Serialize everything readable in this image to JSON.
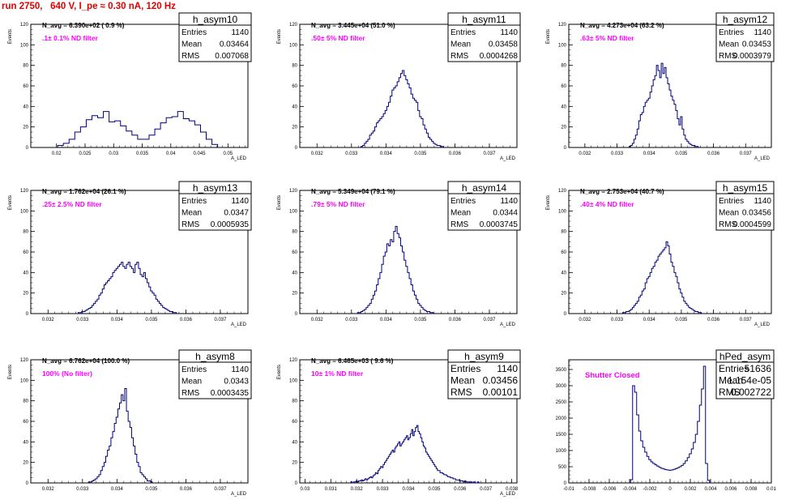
{
  "page": {
    "title": "run 2750,   640 V, I_pe ≈ 0.30 nA, 120 Hz"
  },
  "chart_data": [
    {
      "type": "bar",
      "name": "h_asym10",
      "ylabel": "Events",
      "xlabel": "A_LED",
      "ylim": [
        0,
        120
      ],
      "xlim": [
        0.0155,
        0.0535
      ],
      "xticks": [
        "0.02",
        "0.025",
        "0.03",
        "0.035",
        "0.04",
        "0.045",
        "0.05"
      ],
      "yticks": [
        "0",
        "20",
        "40",
        "60",
        "80",
        "100",
        "120"
      ],
      "n_avg": "N_avg = 6.390e+02 ( 0.9 %)",
      "filter": ".1± 0.1% ND filter",
      "stats": {
        "Entries": "1140",
        "Mean": "0.03464",
        "RMS": "0.007068"
      },
      "x": [
        0.0207,
        0.0217,
        0.0227,
        0.0237,
        0.0247,
        0.0257,
        0.0267,
        0.0277,
        0.0287,
        0.0297,
        0.0307,
        0.0317,
        0.0327,
        0.0337,
        0.0347,
        0.0357,
        0.0367,
        0.0377,
        0.0387,
        0.0397,
        0.0407,
        0.0417,
        0.0427,
        0.0437,
        0.0447,
        0.0457,
        0.0467,
        0.0477
      ],
      "values": [
        2,
        4,
        8,
        15,
        20,
        27,
        31,
        29,
        35,
        25,
        26,
        21,
        16,
        12,
        8,
        8,
        12,
        18,
        24,
        29,
        30,
        35,
        28,
        26,
        22,
        15,
        8,
        3
      ]
    },
    {
      "type": "bar",
      "name": "h_asym11",
      "ylabel": "Events",
      "xlabel": "A_LED",
      "ylim": [
        0,
        120
      ],
      "xlim": [
        0.0315,
        0.0378
      ],
      "xticks": [
        "0.032",
        "0.033",
        "0.034",
        "0.035",
        "0.036",
        "0.037"
      ],
      "yticks": [
        "0",
        "20",
        "40",
        "60",
        "80",
        "100",
        "120"
      ],
      "n_avg": "N_avg = 3.445e+04 (51.0 %)",
      "filter": ".50± 5% ND filter",
      "stats": {
        "Entries": "1140",
        "Mean": "0.03458",
        "RMS": "0.0004268"
      },
      "x": [
        0.0333,
        0.03335,
        0.0334,
        0.03345,
        0.0335,
        0.03355,
        0.0336,
        0.03365,
        0.0337,
        0.03375,
        0.0338,
        0.03385,
        0.0339,
        0.03395,
        0.034,
        0.03405,
        0.0341,
        0.03415,
        0.0342,
        0.03425,
        0.0343,
        0.03435,
        0.0344,
        0.03445,
        0.0345,
        0.03455,
        0.0346,
        0.03465,
        0.0347,
        0.03475,
        0.0348,
        0.03485,
        0.0349,
        0.03495,
        0.035,
        0.03505,
        0.0351,
        0.03515,
        0.0352,
        0.03525,
        0.0353,
        0.03535,
        0.0354,
        0.03545,
        0.0355,
        0.03555,
        0.0356,
        0.03565
      ],
      "values": [
        1,
        2,
        4,
        6,
        8,
        12,
        14,
        16,
        20,
        24,
        26,
        28,
        30,
        33,
        36,
        40,
        44,
        50,
        56,
        58,
        60,
        64,
        68,
        72,
        75,
        70,
        66,
        62,
        58,
        52,
        48,
        46,
        44,
        36,
        30,
        28,
        22,
        18,
        14,
        10,
        8,
        6,
        4,
        3,
        2,
        2,
        1,
        1
      ]
    },
    {
      "type": "bar",
      "name": "h_asym12",
      "ylabel": "Events",
      "xlabel": "A_LED",
      "ylim": [
        0,
        120
      ],
      "xlim": [
        0.0315,
        0.0378
      ],
      "xticks": [
        "0.032",
        "0.033",
        "0.034",
        "0.035",
        "0.036",
        "0.037"
      ],
      "yticks": [
        "0",
        "20",
        "40",
        "60",
        "80",
        "100",
        "120"
      ],
      "n_avg": "N_avg = 4.273e+04 (63.2 %)",
      "filter": ".63± 5% ND filter",
      "stats": {
        "Entries": "1140",
        "Mean": "0.03453",
        "RMS": "0.0003979"
      },
      "x": [
        0.0334,
        0.03345,
        0.0335,
        0.03355,
        0.0336,
        0.03365,
        0.0337,
        0.03375,
        0.0338,
        0.03385,
        0.0339,
        0.03395,
        0.034,
        0.03405,
        0.0341,
        0.03415,
        0.0342,
        0.03425,
        0.0343,
        0.03435,
        0.0344,
        0.03445,
        0.0345,
        0.03455,
        0.0346,
        0.03465,
        0.0347,
        0.03475,
        0.0348,
        0.03485,
        0.0349,
        0.03495,
        0.035,
        0.03505,
        0.0351,
        0.03515,
        0.0352,
        0.03525,
        0.0353,
        0.03535,
        0.0354,
        0.03545,
        0.0355
      ],
      "values": [
        1,
        2,
        4,
        8,
        12,
        18,
        26,
        32,
        34,
        40,
        44,
        46,
        48,
        54,
        60,
        66,
        70,
        80,
        75,
        68,
        82,
        72,
        78,
        68,
        62,
        56,
        50,
        46,
        42,
        36,
        28,
        22,
        30,
        18,
        12,
        8,
        6,
        4,
        3,
        2,
        2,
        1,
        1
      ]
    },
    {
      "type": "bar",
      "name": "h_asym13",
      "ylabel": "Events",
      "xlabel": "A_LED",
      "ylim": [
        0,
        120
      ],
      "xlim": [
        0.0315,
        0.0378
      ],
      "xticks": [
        "0.032",
        "0.033",
        "0.034",
        "0.035",
        "0.036",
        "0.037"
      ],
      "yticks": [
        "0",
        "20",
        "40",
        "60",
        "80",
        "100",
        "120"
      ],
      "n_avg": "N_avg = 1.762e+04 (26.1 %)",
      "filter": ".25± 2.5% ND filter",
      "stats": {
        "Entries": "1140",
        "Mean": "0.0347",
        "RMS": "0.0005935"
      },
      "x": [
        0.0329,
        0.03295,
        0.033,
        0.03305,
        0.0331,
        0.03315,
        0.0332,
        0.03325,
        0.0333,
        0.03335,
        0.0334,
        0.03345,
        0.0335,
        0.03355,
        0.0336,
        0.03365,
        0.0337,
        0.03375,
        0.0338,
        0.03385,
        0.0339,
        0.03395,
        0.034,
        0.03405,
        0.0341,
        0.03415,
        0.0342,
        0.03425,
        0.0343,
        0.03435,
        0.0344,
        0.03445,
        0.0345,
        0.03455,
        0.0346,
        0.03465,
        0.0347,
        0.03475,
        0.0348,
        0.03485,
        0.0349,
        0.03495,
        0.035,
        0.03505,
        0.0351,
        0.03515,
        0.0352,
        0.03525,
        0.0353,
        0.03535,
        0.0354,
        0.03545,
        0.0355,
        0.03555,
        0.0356,
        0.03565,
        0.0357
      ],
      "values": [
        1,
        1,
        2,
        2,
        3,
        4,
        5,
        6,
        8,
        10,
        12,
        14,
        18,
        20,
        24,
        28,
        30,
        32,
        34,
        36,
        40,
        42,
        44,
        46,
        48,
        50,
        46,
        44,
        48,
        50,
        46,
        44,
        40,
        48,
        50,
        44,
        38,
        36,
        40,
        34,
        30,
        26,
        22,
        20,
        18,
        14,
        12,
        10,
        8,
        6,
        5,
        4,
        3,
        2,
        2,
        1,
        1
      ]
    },
    {
      "type": "bar",
      "name": "h_asym14",
      "ylabel": "Events",
      "xlabel": "A_LED",
      "ylim": [
        0,
        120
      ],
      "xlim": [
        0.0315,
        0.0378
      ],
      "xticks": [
        "0.032",
        "0.033",
        "0.034",
        "0.035",
        "0.036",
        "0.037"
      ],
      "yticks": [
        "0",
        "20",
        "40",
        "60",
        "80",
        "100",
        "120"
      ],
      "n_avg": "N_avg = 5.349e+04 (79.1 %)",
      "filter": ".79± 5% ND filter",
      "stats": {
        "Entries": "1140",
        "Mean": "0.0344",
        "RMS": "0.0003745"
      },
      "x": [
        0.0332,
        0.03325,
        0.0333,
        0.03335,
        0.0334,
        0.03345,
        0.0335,
        0.03355,
        0.0336,
        0.03365,
        0.0337,
        0.03375,
        0.0338,
        0.03385,
        0.0339,
        0.03395,
        0.034,
        0.03405,
        0.0341,
        0.03415,
        0.0342,
        0.03425,
        0.0343,
        0.03435,
        0.0344,
        0.03445,
        0.0345,
        0.03455,
        0.0346,
        0.03465,
        0.0347,
        0.03475,
        0.0348,
        0.03485,
        0.0349,
        0.03495,
        0.035,
        0.03505,
        0.0351,
        0.03515,
        0.0352,
        0.03525,
        0.0353,
        0.03535
      ],
      "values": [
        1,
        1,
        2,
        3,
        4,
        6,
        8,
        10,
        14,
        18,
        22,
        28,
        34,
        40,
        48,
        56,
        60,
        68,
        66,
        72,
        70,
        80,
        85,
        78,
        74,
        66,
        60,
        52,
        46,
        40,
        34,
        28,
        22,
        18,
        14,
        10,
        8,
        6,
        4,
        3,
        2,
        2,
        1,
        1
      ]
    },
    {
      "type": "bar",
      "name": "h_asym15",
      "ylabel": "Events",
      "xlabel": "A_LED",
      "ylim": [
        0,
        120
      ],
      "xlim": [
        0.0315,
        0.0378
      ],
      "xticks": [
        "0.032",
        "0.033",
        "0.034",
        "0.035",
        "0.036",
        "0.037"
      ],
      "yticks": [
        "0",
        "20",
        "40",
        "60",
        "80",
        "100",
        "120"
      ],
      "n_avg": "N_avg = 2.753e+04 (40.7 %)",
      "filter": ".40± 4% ND filter",
      "stats": {
        "Entries": "1140",
        "Mean": "0.03456",
        "RMS": "0.0004599"
      },
      "x": [
        0.0332,
        0.03325,
        0.0333,
        0.03335,
        0.0334,
        0.03345,
        0.0335,
        0.03355,
        0.0336,
        0.03365,
        0.0337,
        0.03375,
        0.0338,
        0.03385,
        0.0339,
        0.03395,
        0.034,
        0.03405,
        0.0341,
        0.03415,
        0.0342,
        0.03425,
        0.0343,
        0.03435,
        0.0344,
        0.03445,
        0.0345,
        0.03455,
        0.0346,
        0.03465,
        0.0347,
        0.03475,
        0.0348,
        0.03485,
        0.0349,
        0.03495,
        0.035,
        0.03505,
        0.0351,
        0.03515,
        0.0352,
        0.03525,
        0.0353,
        0.03535,
        0.0354,
        0.03545,
        0.0355,
        0.03555,
        0.0356
      ],
      "values": [
        1,
        1,
        2,
        2,
        3,
        4,
        6,
        8,
        10,
        12,
        16,
        18,
        22,
        24,
        30,
        34,
        36,
        40,
        44,
        46,
        50,
        52,
        56,
        58,
        60,
        62,
        64,
        70,
        66,
        58,
        50,
        46,
        40,
        36,
        30,
        24,
        20,
        16,
        12,
        10,
        8,
        6,
        5,
        4,
        3,
        2,
        2,
        1,
        1
      ]
    },
    {
      "type": "bar",
      "name": "h_asym8",
      "ylabel": "Events",
      "xlabel": "A_LED",
      "ylim": [
        0,
        120
      ],
      "xlim": [
        0.0315,
        0.0378
      ],
      "xticks": [
        "0.032",
        "0.033",
        "0.034",
        "0.035",
        "0.036",
        "0.037"
      ],
      "yticks": [
        "0",
        "20",
        "40",
        "60",
        "80",
        "100",
        "120"
      ],
      "n_avg": "N_avg = 6.762e+04 (100.0 %)",
      "filter": "100% (No filter)",
      "stats": {
        "Entries": "1140",
        "Mean": "0.0343",
        "RMS": "0.0003435"
      },
      "x": [
        0.0332,
        0.03325,
        0.0333,
        0.03335,
        0.0334,
        0.03345,
        0.0335,
        0.03355,
        0.0336,
        0.03365,
        0.0337,
        0.03375,
        0.0338,
        0.03385,
        0.0339,
        0.03395,
        0.034,
        0.03405,
        0.0341,
        0.03415,
        0.0342,
        0.03425,
        0.0343,
        0.03435,
        0.0344,
        0.03445,
        0.0345,
        0.03455,
        0.0346,
        0.03465,
        0.0347,
        0.03475,
        0.0348,
        0.03485,
        0.0349,
        0.03495,
        0.035
      ],
      "values": [
        1,
        1,
        2,
        3,
        4,
        6,
        8,
        12,
        16,
        20,
        26,
        32,
        36,
        44,
        50,
        58,
        64,
        72,
        78,
        86,
        80,
        92,
        70,
        60,
        54,
        44,
        36,
        28,
        20,
        16,
        10,
        8,
        6,
        4,
        2,
        2,
        1
      ]
    },
    {
      "type": "bar",
      "name": "h_asym9",
      "ylabel": "Events",
      "xlabel": "A_LED",
      "ylim": [
        0,
        120
      ],
      "xlim": [
        0.0298,
        0.0382
      ],
      "xticks": [
        "0.03",
        "0.031",
        "0.032",
        "0.033",
        "0.034",
        "0.035",
        "0.036",
        "0.037",
        "0.038"
      ],
      "yticks": [
        "0",
        "20",
        "40",
        "60",
        "80",
        "100",
        "120"
      ],
      "n_avg": "N_avg = 6.465e+03 ( 9.6 %)",
      "filter": "10± 1% ND filter",
      "stats": {
        "Entries": "1140",
        "Mean": "0.03456",
        "RMS": "0.00101"
      },
      "x": [
        0.0318,
        0.03185,
        0.0319,
        0.03195,
        0.032,
        0.03205,
        0.0321,
        0.03215,
        0.0322,
        0.03225,
        0.0323,
        0.03235,
        0.0324,
        0.03245,
        0.0325,
        0.03255,
        0.0326,
        0.03265,
        0.0327,
        0.03275,
        0.0328,
        0.03285,
        0.0329,
        0.03295,
        0.033,
        0.03305,
        0.0331,
        0.03315,
        0.0332,
        0.03325,
        0.0333,
        0.03335,
        0.0334,
        0.03345,
        0.0335,
        0.03355,
        0.0336,
        0.03365,
        0.0337,
        0.03375,
        0.0338,
        0.03385,
        0.0339,
        0.03395,
        0.034,
        0.03405,
        0.0341,
        0.03415,
        0.0342,
        0.03425,
        0.0343,
        0.03435,
        0.0344,
        0.03445,
        0.0345,
        0.03455,
        0.0346,
        0.03465,
        0.0347,
        0.03475,
        0.0348,
        0.03485,
        0.0349,
        0.03495,
        0.035,
        0.03505,
        0.0351,
        0.03515,
        0.0352,
        0.03525,
        0.0353,
        0.03535,
        0.0354,
        0.03545,
        0.0355,
        0.03555,
        0.0356,
        0.03565,
        0.0357,
        0.03575,
        0.0358,
        0.03585,
        0.0359,
        0.03595,
        0.036,
        0.03605,
        0.0361,
        0.03615,
        0.0362,
        0.03625,
        0.0363,
        0.03635,
        0.0364,
        0.03645,
        0.0365,
        0.03655,
        0.0366,
        0.03665,
        0.0367
      ],
      "values": [
        1,
        0,
        1,
        1,
        2,
        1,
        2,
        2,
        3,
        2,
        3,
        4,
        3,
        4,
        5,
        6,
        5,
        7,
        8,
        10,
        9,
        12,
        14,
        16,
        15,
        18,
        20,
        22,
        24,
        26,
        28,
        30,
        32,
        30,
        34,
        36,
        38,
        40,
        36,
        38,
        40,
        42,
        44,
        46,
        42,
        44,
        48,
        52,
        46,
        50,
        54,
        56,
        50,
        48,
        44,
        40,
        36,
        34,
        30,
        28,
        26,
        24,
        22,
        20,
        18,
        16,
        14,
        12,
        12,
        10,
        10,
        9,
        8,
        8,
        7,
        6,
        6,
        5,
        5,
        4,
        4,
        3,
        3,
        3,
        2,
        2,
        2,
        1,
        2,
        1,
        1,
        1,
        0,
        1,
        0,
        1,
        0,
        0,
        1
      ]
    },
    {
      "type": "bar",
      "name": "hPed_asym",
      "ylabel": "",
      "xlabel": "",
      "ylim": [
        0,
        3800
      ],
      "xlim": [
        -0.01,
        0.01
      ],
      "xticks": [
        "-0.01",
        "-0.008",
        "-0.006",
        "-0.004",
        "-0.002",
        "0",
        "0.002",
        "0.004",
        "0.006",
        "0.008",
        "0.01"
      ],
      "yticks": [
        "0",
        "500",
        "1000",
        "1500",
        "2000",
        "2500",
        "3000",
        "3500"
      ],
      "n_avg": "",
      "filter": "Shutter Closed",
      "stats": {
        "Entries": "51636",
        "Mean": "1.154e-05",
        "RMS": "0.002722"
      },
      "x": [
        -0.0038,
        -0.0036,
        -0.0034,
        -0.0032,
        -0.003,
        -0.0028,
        -0.0026,
        -0.0024,
        -0.0022,
        -0.002,
        -0.0018,
        -0.0016,
        -0.0014,
        -0.0012,
        -0.001,
        -0.0008,
        -0.0006,
        -0.0004,
        -0.0002,
        0,
        0.0002,
        0.0004,
        0.0006,
        0.0008,
        0.001,
        0.0012,
        0.0014,
        0.0016,
        0.0018,
        0.002,
        0.0022,
        0.0024,
        0.0026,
        0.0028,
        0.003,
        0.0032,
        0.0034,
        0.0036,
        0.0038,
        0.004
      ],
      "values": [
        100,
        3000,
        2800,
        2100,
        1600,
        1300,
        1100,
        950,
        820,
        720,
        650,
        600,
        560,
        520,
        480,
        450,
        430,
        410,
        400,
        390,
        400,
        420,
        440,
        470,
        500,
        540,
        600,
        680,
        780,
        900,
        1050,
        1250,
        1500,
        1900,
        2400,
        2900,
        3600,
        600,
        80,
        0
      ]
    }
  ]
}
